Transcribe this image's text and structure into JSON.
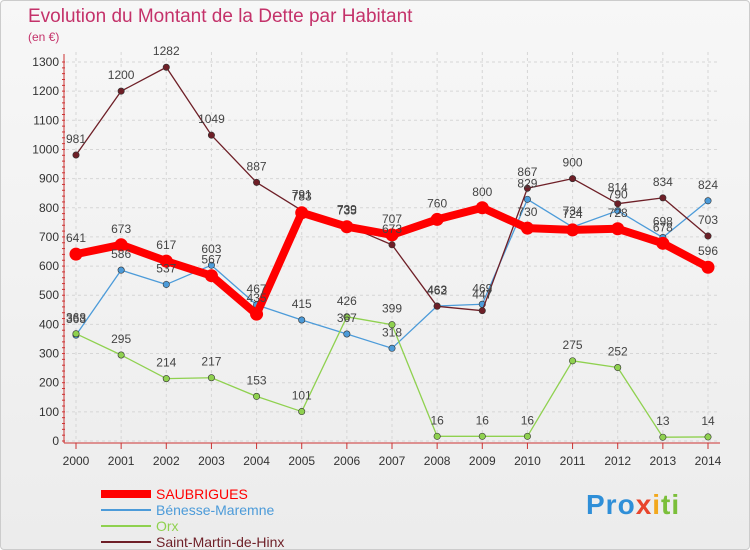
{
  "chart_data": {
    "type": "line",
    "title": "Evolution du Montant de la Dette par Habitant",
    "subtitle": "(en €)",
    "x": [
      "2000",
      "2001",
      "2002",
      "2003",
      "2004",
      "2005",
      "2006",
      "2007",
      "2008",
      "2009",
      "2010",
      "2011",
      "2012",
      "2013",
      "2014"
    ],
    "ylim": [
      0,
      1300
    ],
    "yticks": [
      0,
      100,
      200,
      300,
      400,
      500,
      600,
      700,
      800,
      900,
      1000,
      1100,
      1200,
      1300
    ],
    "grid": true,
    "legend_position": "bottom-left",
    "series": [
      {
        "name": "SAUBRIGUES",
        "color": "#ff0000",
        "values": [
          641,
          673,
          617,
          567,
          435,
          783,
          735,
          707,
          760,
          800,
          730,
          724,
          728,
          678,
          596
        ],
        "labels": [
          "641",
          "673",
          "617",
          "567",
          "435",
          "783",
          "735",
          "707",
          "760",
          "800",
          "730",
          "724",
          "728",
          "678",
          "596"
        ]
      },
      {
        "name": "Bénesse-Maremne",
        "color": "#4c9bd9",
        "values": [
          363,
          586,
          537,
          603,
          467,
          415,
          367,
          318,
          463,
          469,
          829,
          734,
          790,
          698,
          824
        ],
        "labels": [
          "363",
          "586",
          "537",
          "603",
          "467",
          "415",
          "367",
          "318",
          "463",
          "469",
          "829",
          "734",
          "790",
          "698",
          "824"
        ]
      },
      {
        "name": "Orx",
        "color": "#8fd14f",
        "values": [
          368,
          295,
          214,
          217,
          153,
          101,
          426,
          399,
          16,
          16,
          16,
          275,
          252,
          13,
          14
        ],
        "labels": [
          "368",
          "295",
          "214",
          "217",
          "153",
          "101",
          "426",
          "399",
          "16",
          "16",
          "16",
          "275",
          "252",
          "13",
          "14"
        ]
      },
      {
        "name": "Saint-Martin-de-Hinx",
        "color": "#6e1f27",
        "values": [
          981,
          1200,
          1282,
          1049,
          887,
          791,
          739,
          673,
          462,
          447,
          867,
          900,
          814,
          834,
          703
        ],
        "labels": [
          "981",
          "1200",
          "1282",
          "1049",
          "887",
          "791",
          "739",
          "673",
          "462",
          "447",
          "867",
          "900",
          "814",
          "834",
          "703"
        ]
      }
    ]
  },
  "logo": {
    "text": "Proxiti"
  }
}
